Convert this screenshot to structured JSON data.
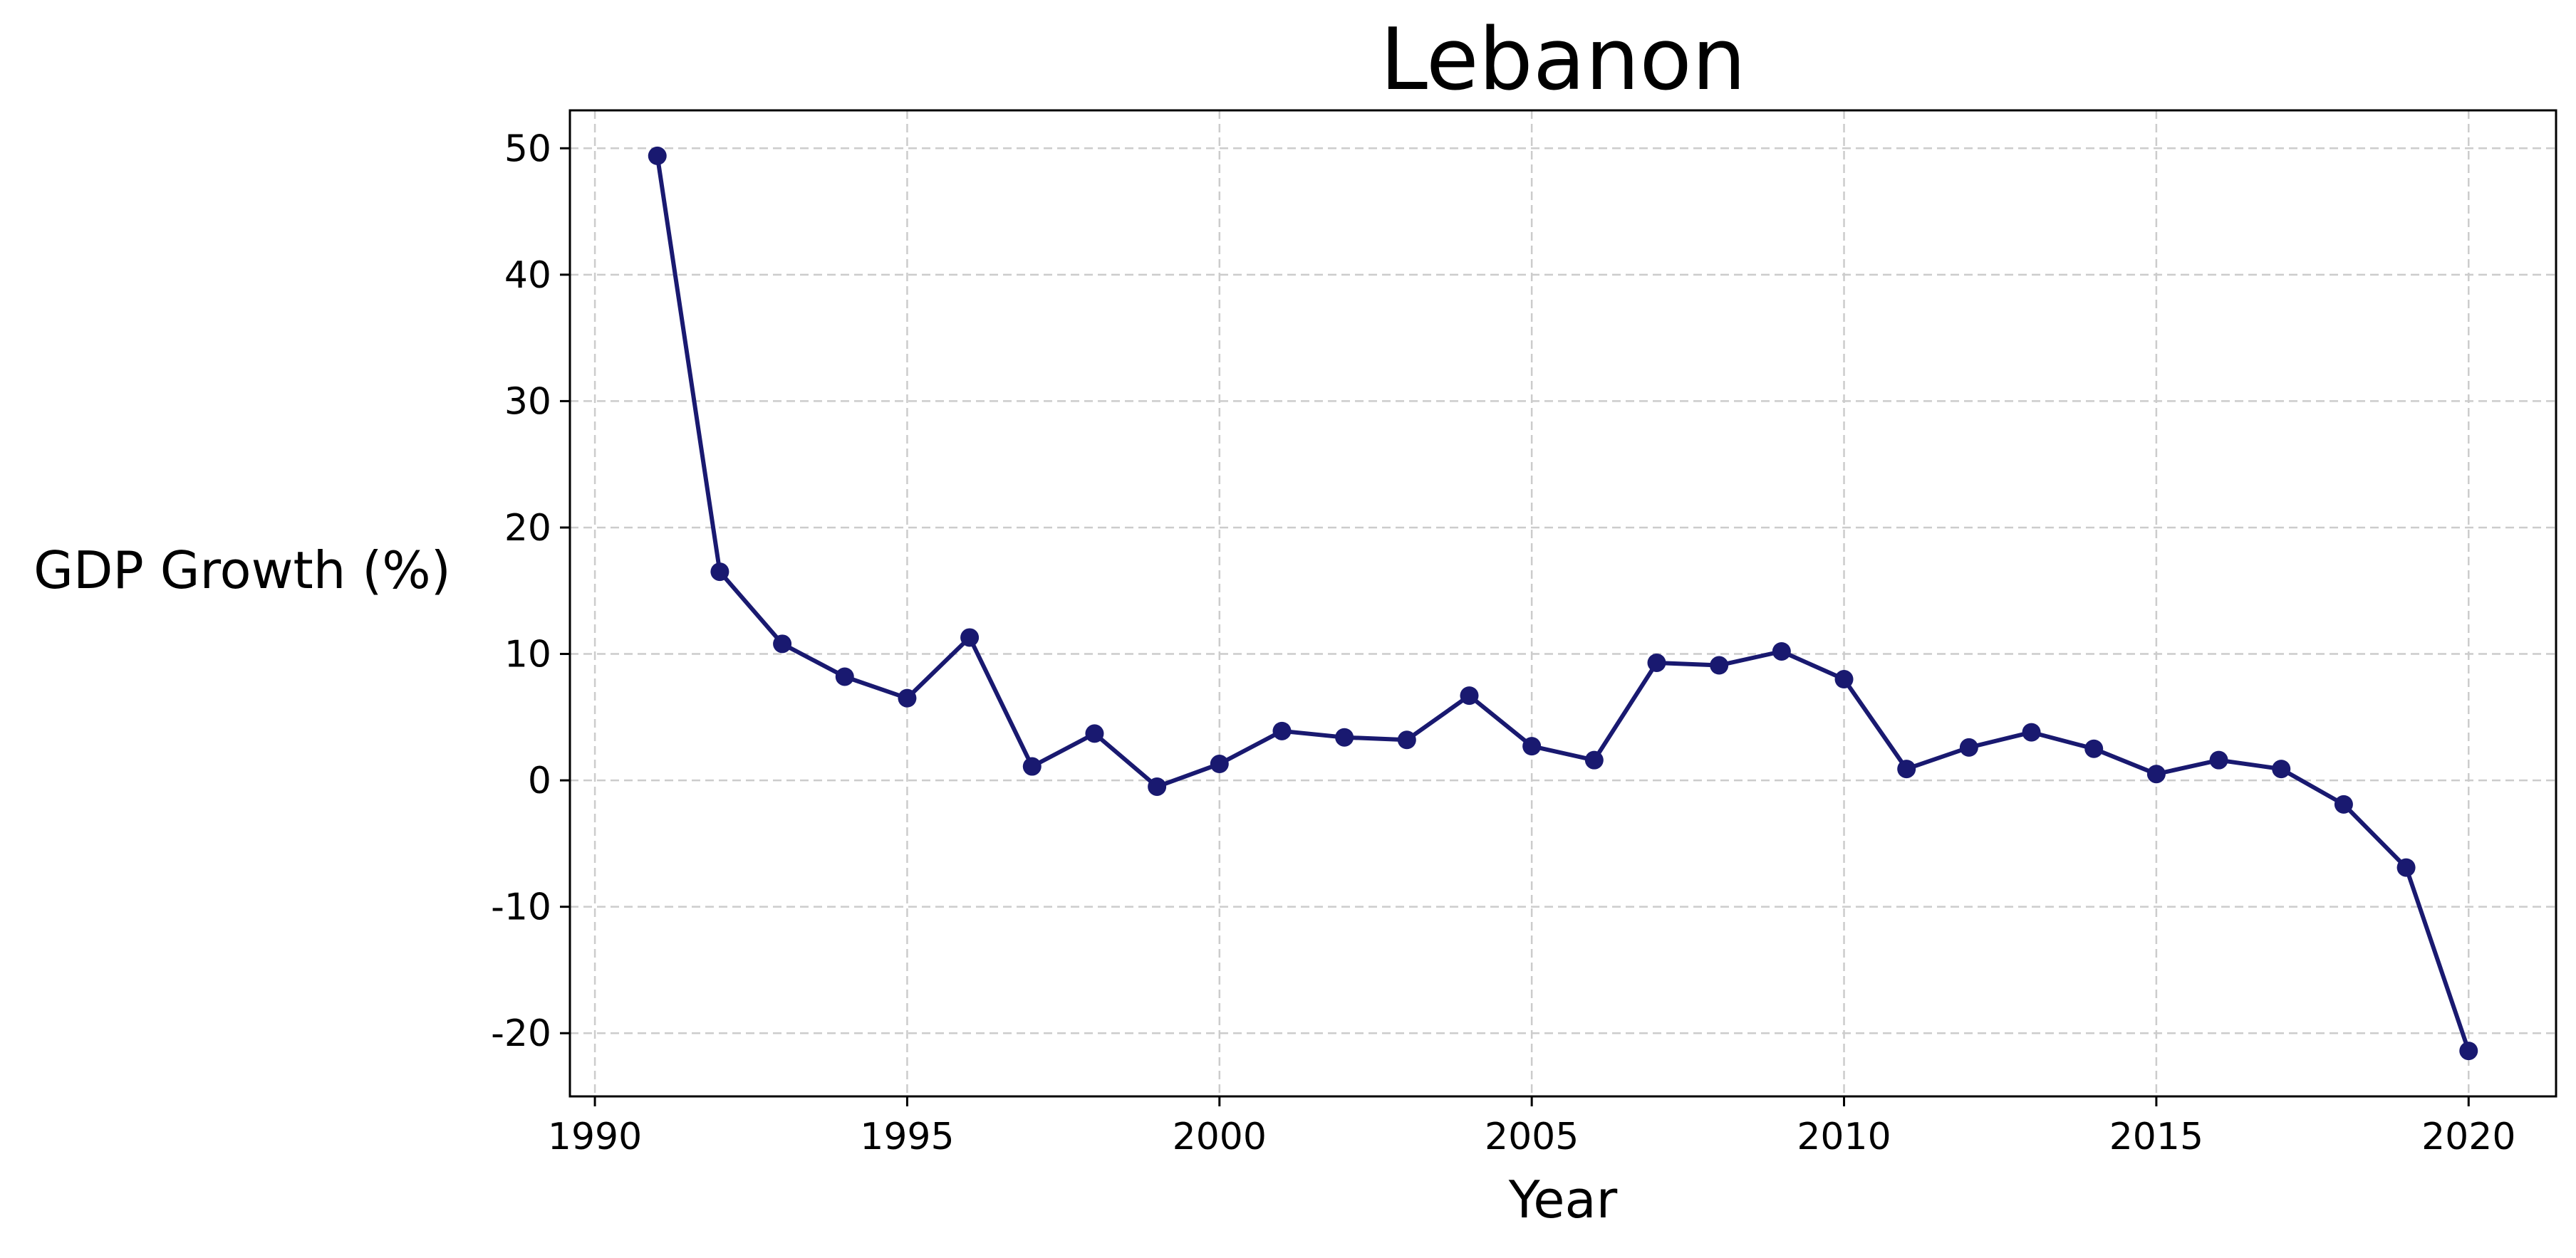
{
  "chart_data": {
    "type": "line",
    "title": "Lebanon",
    "xlabel": "Year",
    "ylabel": "GDP Growth (%)",
    "xlim": [
      1989.6,
      2021.4
    ],
    "ylim": [
      -25,
      53
    ],
    "x_ticks": [
      1990,
      1995,
      2000,
      2005,
      2010,
      2015,
      2020
    ],
    "y_ticks": [
      -20,
      -10,
      0,
      10,
      20,
      30,
      40,
      50
    ],
    "x_tick_labels": [
      "1990",
      "1995",
      "2000",
      "2005",
      "2010",
      "2015",
      "2020"
    ],
    "y_tick_labels": [
      "-20",
      "-10",
      "0",
      "10",
      "20",
      "30",
      "40",
      "50"
    ],
    "grid": true,
    "colors": {
      "line": "#191970",
      "marker": "#191970",
      "grid": "#cccccc"
    },
    "x": [
      1991,
      1992,
      1993,
      1994,
      1995,
      1996,
      1997,
      1998,
      1999,
      2000,
      2001,
      2002,
      2003,
      2004,
      2005,
      2006,
      2007,
      2008,
      2009,
      2010,
      2011,
      2012,
      2013,
      2014,
      2015,
      2016,
      2017,
      2018,
      2019,
      2020
    ],
    "y": [
      49.4,
      16.5,
      10.8,
      8.2,
      6.5,
      11.3,
      1.1,
      3.7,
      -0.5,
      1.3,
      3.9,
      3.4,
      3.2,
      6.7,
      2.7,
      1.6,
      9.3,
      9.1,
      10.2,
      8.0,
      0.9,
      2.6,
      3.8,
      2.5,
      0.5,
      1.6,
      0.9,
      -1.9,
      -6.9,
      -21.4
    ]
  }
}
